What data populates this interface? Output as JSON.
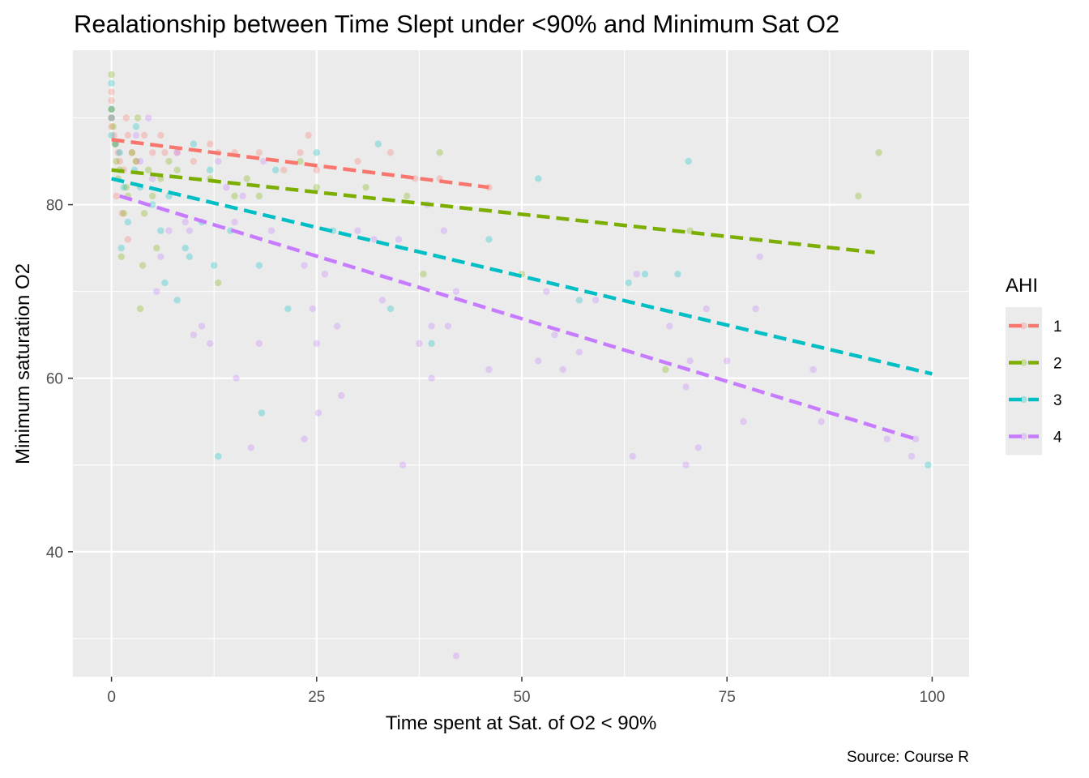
{
  "chart_data": {
    "type": "scatter",
    "title": "Realationship between Time Slept under <90% and Minimum Sat O2",
    "xlabel": "Time spent at Sat. of O2 < 90%",
    "ylabel": "Minimum saturation O2",
    "caption": "Source: Course R",
    "xlim": [
      -4.7,
      104.5
    ],
    "ylim": [
      25.6,
      97.8
    ],
    "x_ticks": [
      0,
      25,
      50,
      75,
      100
    ],
    "y_ticks": [
      40,
      60,
      80
    ],
    "grid": true,
    "legend": {
      "title": "AHI",
      "placement": "right",
      "entries": [
        {
          "label": "1",
          "color": "#F8766D"
        },
        {
          "label": "2",
          "color": "#7CAE00"
        },
        {
          "label": "3",
          "color": "#00BFC4"
        },
        {
          "label": "4",
          "color": "#C77CFF"
        }
      ]
    },
    "series": [
      {
        "name": "1",
        "color": "#F8766D",
        "trend": {
          "x": [
            0,
            46
          ],
          "y": [
            87.5,
            82
          ]
        },
        "points": [
          [
            0,
            93
          ],
          [
            0,
            92
          ],
          [
            0,
            91
          ],
          [
            0,
            90
          ],
          [
            0,
            90
          ],
          [
            0,
            89
          ],
          [
            0.3,
            88
          ],
          [
            0.5,
            87
          ],
          [
            0.8,
            86
          ],
          [
            1,
            85
          ],
          [
            1.5,
            84
          ],
          [
            1.8,
            90
          ],
          [
            2,
            88
          ],
          [
            2.5,
            86
          ],
          [
            3,
            85
          ],
          [
            4,
            88
          ],
          [
            5,
            86
          ],
          [
            6,
            88
          ],
          [
            6.5,
            86
          ],
          [
            8,
            86
          ],
          [
            10,
            85
          ],
          [
            12,
            87
          ],
          [
            13,
            86
          ],
          [
            15,
            86
          ],
          [
            18,
            86
          ],
          [
            21,
            84
          ],
          [
            23,
            86
          ],
          [
            24,
            88
          ],
          [
            25,
            84
          ],
          [
            30,
            85
          ],
          [
            34,
            86
          ],
          [
            37,
            83
          ],
          [
            40,
            83
          ],
          [
            46,
            82
          ],
          [
            2,
            76
          ],
          [
            1.3,
            79
          ],
          [
            0.6,
            81
          ]
        ]
      },
      {
        "name": "2",
        "color": "#7CAE00",
        "trend": {
          "x": [
            0,
            93
          ],
          "y": [
            84,
            74.5
          ]
        },
        "points": [
          [
            0,
            95
          ],
          [
            0,
            91
          ],
          [
            0.2,
            89
          ],
          [
            0.4,
            87
          ],
          [
            0.6,
            85
          ],
          [
            1,
            84
          ],
          [
            1.2,
            74
          ],
          [
            1.5,
            79
          ],
          [
            2,
            81
          ],
          [
            2.5,
            86
          ],
          [
            3,
            85
          ],
          [
            3.2,
            90
          ],
          [
            3.5,
            68
          ],
          [
            3.8,
            73
          ],
          [
            4,
            79
          ],
          [
            4.5,
            84
          ],
          [
            5,
            81
          ],
          [
            5.5,
            75
          ],
          [
            6,
            83
          ],
          [
            7,
            85
          ],
          [
            8,
            84
          ],
          [
            12,
            83
          ],
          [
            13,
            71
          ],
          [
            15,
            81
          ],
          [
            16.5,
            83
          ],
          [
            18,
            81
          ],
          [
            23,
            85
          ],
          [
            25,
            82
          ],
          [
            31,
            82
          ],
          [
            36,
            81
          ],
          [
            38,
            72
          ],
          [
            40,
            86
          ],
          [
            50,
            72
          ],
          [
            67.5,
            61
          ],
          [
            70.5,
            77
          ],
          [
            91,
            81
          ],
          [
            93.5,
            86
          ],
          [
            1.8,
            82
          ],
          [
            0.8,
            83
          ]
        ]
      },
      {
        "name": "3",
        "color": "#00BFC4",
        "trend": {
          "x": [
            0,
            100
          ],
          "y": [
            83,
            60.5
          ]
        },
        "points": [
          [
            0,
            94
          ],
          [
            0,
            91
          ],
          [
            0,
            90
          ],
          [
            0,
            88
          ],
          [
            0.5,
            87
          ],
          [
            1,
            86
          ],
          [
            1.5,
            82
          ],
          [
            2,
            78
          ],
          [
            3,
            89
          ],
          [
            3.5,
            82
          ],
          [
            5,
            80
          ],
          [
            6,
            77
          ],
          [
            6.5,
            71
          ],
          [
            7,
            81
          ],
          [
            8,
            69
          ],
          [
            9,
            75
          ],
          [
            9.5,
            74
          ],
          [
            10,
            87
          ],
          [
            11,
            78
          ],
          [
            12,
            84
          ],
          [
            12.5,
            73
          ],
          [
            13,
            51
          ],
          [
            14.5,
            77
          ],
          [
            18,
            73
          ],
          [
            18.3,
            56
          ],
          [
            20,
            84
          ],
          [
            21.5,
            68
          ],
          [
            25,
            86
          ],
          [
            27,
            77
          ],
          [
            32.5,
            87
          ],
          [
            34,
            68
          ],
          [
            39,
            64
          ],
          [
            46,
            76
          ],
          [
            52,
            83
          ],
          [
            57,
            69
          ],
          [
            63,
            71
          ],
          [
            65,
            72
          ],
          [
            69,
            72
          ],
          [
            70.3,
            85
          ],
          [
            99.5,
            50
          ],
          [
            1.2,
            75
          ],
          [
            2.8,
            84
          ]
        ]
      },
      {
        "name": "4",
        "color": "#C77CFF",
        "trend": {
          "x": [
            1,
            98
          ],
          "y": [
            81,
            53
          ]
        },
        "points": [
          [
            3,
            88
          ],
          [
            3.5,
            85
          ],
          [
            4.5,
            90
          ],
          [
            5,
            83
          ],
          [
            5.5,
            70
          ],
          [
            6,
            74
          ],
          [
            7,
            77
          ],
          [
            8,
            86
          ],
          [
            9,
            78
          ],
          [
            9.5,
            77
          ],
          [
            10,
            65
          ],
          [
            11,
            66
          ],
          [
            12,
            64
          ],
          [
            13,
            85
          ],
          [
            14,
            82
          ],
          [
            15,
            78
          ],
          [
            15.2,
            60
          ],
          [
            16,
            81
          ],
          [
            17,
            52
          ],
          [
            18,
            64
          ],
          [
            18.5,
            85
          ],
          [
            19.5,
            77
          ],
          [
            23.5,
            73
          ],
          [
            23.5,
            53
          ],
          [
            24.5,
            68
          ],
          [
            25,
            64
          ],
          [
            25.2,
            56
          ],
          [
            26,
            72
          ],
          [
            27.5,
            66
          ],
          [
            28,
            58
          ],
          [
            30,
            77
          ],
          [
            32,
            76
          ],
          [
            33,
            69
          ],
          [
            35,
            76
          ],
          [
            35.5,
            50
          ],
          [
            37.5,
            64
          ],
          [
            38.5,
            80
          ],
          [
            39,
            66
          ],
          [
            39,
            60
          ],
          [
            40.5,
            77
          ],
          [
            41,
            66
          ],
          [
            42,
            70
          ],
          [
            42,
            28
          ],
          [
            46,
            61
          ],
          [
            52,
            62
          ],
          [
            53,
            70
          ],
          [
            54,
            65
          ],
          [
            55,
            61
          ],
          [
            57,
            63
          ],
          [
            59,
            69
          ],
          [
            63.5,
            51
          ],
          [
            64,
            72
          ],
          [
            68,
            66
          ],
          [
            70,
            59
          ],
          [
            70,
            50
          ],
          [
            70.5,
            62
          ],
          [
            71.5,
            52
          ],
          [
            72.5,
            68
          ],
          [
            75,
            62
          ],
          [
            77,
            55
          ],
          [
            78.5,
            68
          ],
          [
            79,
            74
          ],
          [
            85.5,
            61
          ],
          [
            86.5,
            55
          ],
          [
            94.5,
            53
          ],
          [
            97.5,
            51
          ],
          [
            98,
            53
          ]
        ]
      }
    ]
  }
}
